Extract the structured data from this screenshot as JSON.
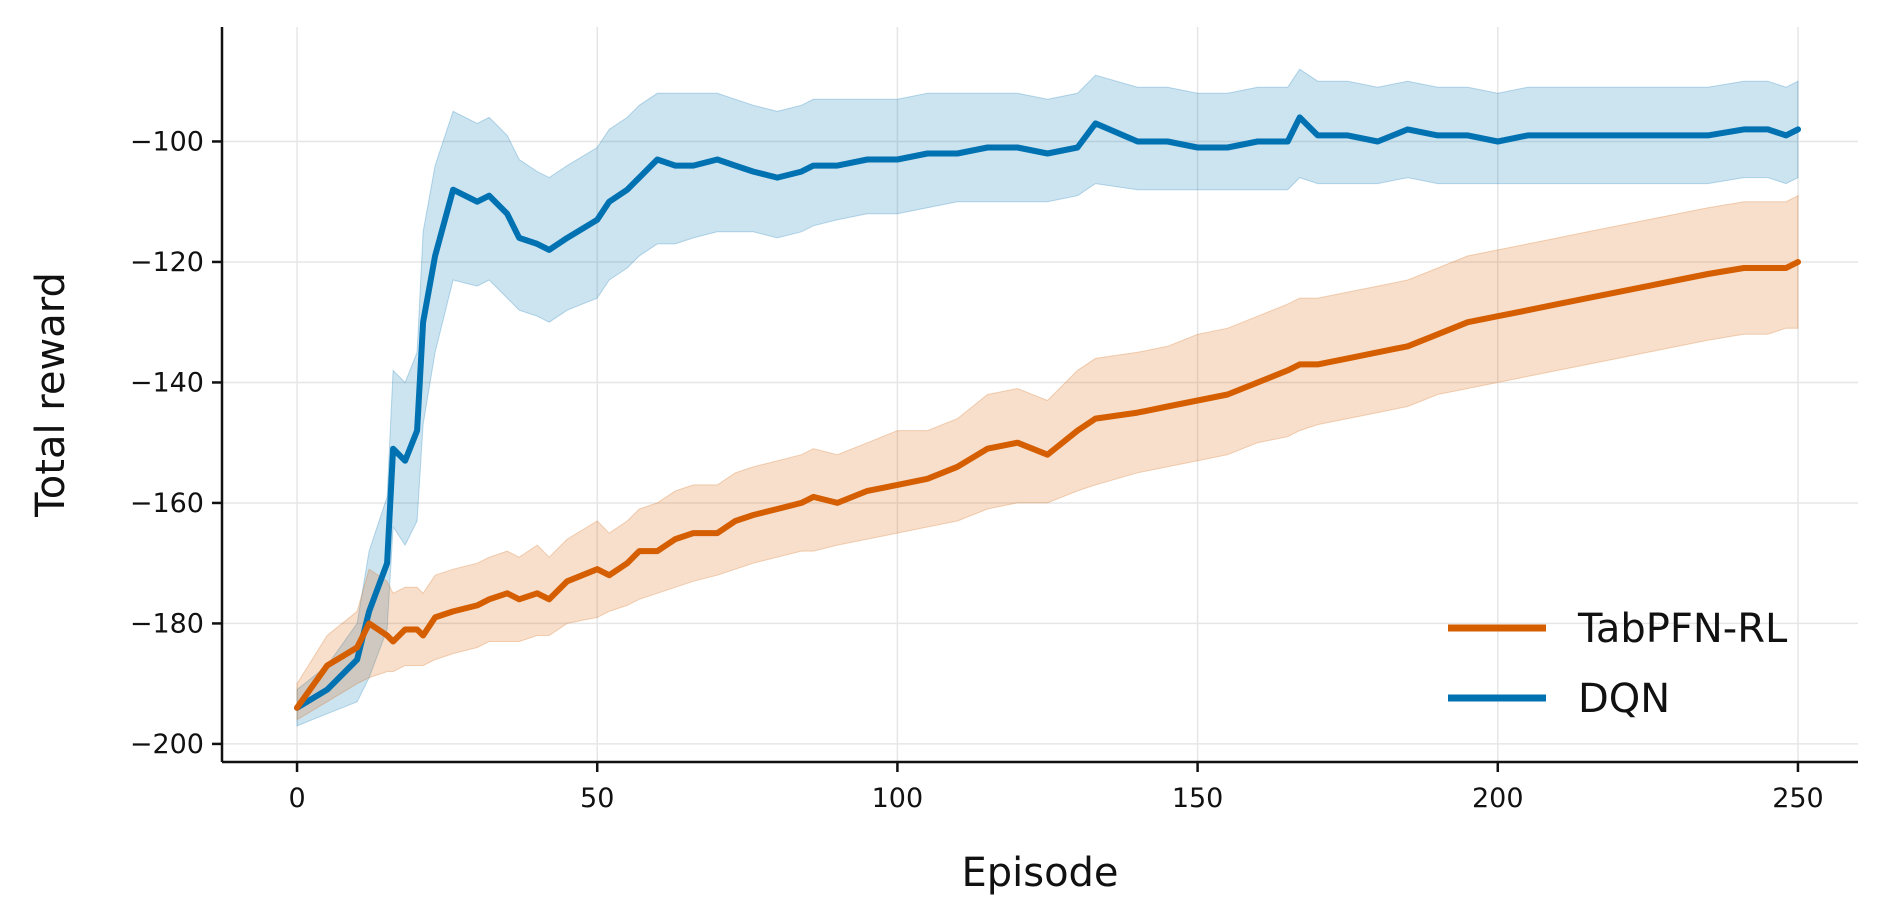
{
  "chart_data": {
    "type": "line",
    "xlabel": "Episode",
    "ylabel": "Total reward",
    "xlim": [
      -12.5,
      260
    ],
    "ylim": [
      -203,
      -81
    ],
    "x_ticks": [
      0,
      50,
      100,
      150,
      200,
      250
    ],
    "y_ticks": [
      -200,
      -180,
      -160,
      -140,
      -120,
      -100
    ],
    "grid": true,
    "legend_position": "bottom-right",
    "x": [
      0,
      5,
      10,
      12,
      15,
      16,
      18,
      20,
      21,
      23,
      26,
      30,
      32,
      35,
      37,
      40,
      42,
      45,
      50,
      52,
      55,
      57,
      60,
      63,
      66,
      70,
      73,
      76,
      80,
      84,
      86,
      90,
      95,
      100,
      105,
      110,
      115,
      120,
      125,
      130,
      133,
      140,
      145,
      150,
      155,
      160,
      165,
      167,
      170,
      175,
      180,
      185,
      190,
      195,
      200,
      205,
      210,
      215,
      220,
      225,
      230,
      235,
      241,
      245,
      248,
      250
    ],
    "series": [
      {
        "name": "TabPFN-RL",
        "color": "#d55e00",
        "values": [
          -194,
          -187,
          -184,
          -180,
          -182,
          -183,
          -181,
          -181,
          -182,
          -179,
          -178,
          -177,
          -176,
          -175,
          -176,
          -175,
          -176,
          -173,
          -171,
          -172,
          -170,
          -168,
          -168,
          -166,
          -165,
          -165,
          -163,
          -162,
          -161,
          -160,
          -159,
          -160,
          -158,
          -157,
          -156,
          -154,
          -151,
          -150,
          -152,
          -148,
          -146,
          -145,
          -144,
          -143,
          -142,
          -140,
          -138,
          -137,
          -137,
          -136,
          -135,
          -134,
          -132,
          -130,
          -129,
          -128,
          -127,
          -126,
          -125,
          -124,
          -123,
          -122,
          -121,
          -121,
          -121,
          -120
        ],
        "lower": [
          -196,
          -193,
          -190,
          -189,
          -188,
          -188,
          -187,
          -187,
          -187,
          -186,
          -185,
          -184,
          -183,
          -183,
          -183,
          -182,
          -182,
          -180,
          -179,
          -178,
          -177,
          -176,
          -175,
          -174,
          -173,
          -172,
          -171,
          -170,
          -169,
          -168,
          -168,
          -167,
          -166,
          -165,
          -164,
          -163,
          -161,
          -160,
          -160,
          -158,
          -157,
          -155,
          -154,
          -153,
          -152,
          -150,
          -149,
          -148,
          -147,
          -146,
          -145,
          -144,
          -142,
          -141,
          -140,
          -139,
          -138,
          -137,
          -136,
          -135,
          -134,
          -133,
          -132,
          -132,
          -131,
          -131
        ],
        "upper": [
          -190,
          -182,
          -178,
          -171,
          -173,
          -175,
          -174,
          -174,
          -175,
          -172,
          -171,
          -170,
          -169,
          -168,
          -169,
          -167,
          -169,
          -166,
          -163,
          -165,
          -163,
          -161,
          -160,
          -158,
          -157,
          -157,
          -155,
          -154,
          -153,
          -152,
          -151,
          -152,
          -150,
          -148,
          -148,
          -146,
          -142,
          -141,
          -143,
          -138,
          -136,
          -135,
          -134,
          -132,
          -131,
          -129,
          -127,
          -126,
          -126,
          -125,
          -124,
          -123,
          -121,
          -119,
          -118,
          -117,
          -116,
          -115,
          -114,
          -113,
          -112,
          -111,
          -110,
          -110,
          -110,
          -109
        ]
      },
      {
        "name": "DQN",
        "color": "#0072b2",
        "values": [
          -194,
          -191,
          -186,
          -178,
          -170,
          -151,
          -153,
          -148,
          -130,
          -119,
          -108,
          -110,
          -109,
          -112,
          -116,
          -117,
          -118,
          -116,
          -113,
          -110,
          -108,
          -106,
          -103,
          -104,
          -104,
          -103,
          -104,
          -105,
          -106,
          -105,
          -104,
          -104,
          -103,
          -103,
          -102,
          -102,
          -101,
          -101,
          -102,
          -101,
          -97,
          -100,
          -100,
          -101,
          -101,
          -100,
          -100,
          -96,
          -99,
          -99,
          -100,
          -98,
          -99,
          -99,
          -100,
          -99,
          -99,
          -99,
          -99,
          -99,
          -99,
          -99,
          -98,
          -98,
          -99,
          -98
        ],
        "lower": [
          -197,
          -195,
          -193,
          -189,
          -181,
          -164,
          -167,
          -163,
          -147,
          -135,
          -123,
          -124,
          -123,
          -126,
          -128,
          -129,
          -130,
          -128,
          -126,
          -123,
          -121,
          -119,
          -117,
          -117,
          -116,
          -115,
          -115,
          -115,
          -116,
          -115,
          -114,
          -113,
          -112,
          -112,
          -111,
          -110,
          -110,
          -110,
          -110,
          -109,
          -107,
          -108,
          -108,
          -108,
          -108,
          -108,
          -108,
          -106,
          -107,
          -107,
          -107,
          -106,
          -107,
          -107,
          -107,
          -107,
          -107,
          -107,
          -107,
          -107,
          -107,
          -107,
          -106,
          -106,
          -107,
          -106
        ],
        "upper": [
          -191,
          -187,
          -180,
          -168,
          -159,
          -138,
          -140,
          -135,
          -115,
          -104,
          -95,
          -97,
          -96,
          -99,
          -103,
          -105,
          -106,
          -104,
          -101,
          -98,
          -96,
          -94,
          -92,
          -92,
          -92,
          -92,
          -93,
          -94,
          -95,
          -94,
          -93,
          -93,
          -93,
          -93,
          -92,
          -92,
          -92,
          -92,
          -93,
          -92,
          -89,
          -91,
          -91,
          -92,
          -92,
          -91,
          -91,
          -88,
          -90,
          -90,
          -91,
          -90,
          -91,
          -91,
          -92,
          -91,
          -91,
          -91,
          -91,
          -91,
          -91,
          -91,
          -90,
          -90,
          -91,
          -90
        ]
      }
    ]
  }
}
